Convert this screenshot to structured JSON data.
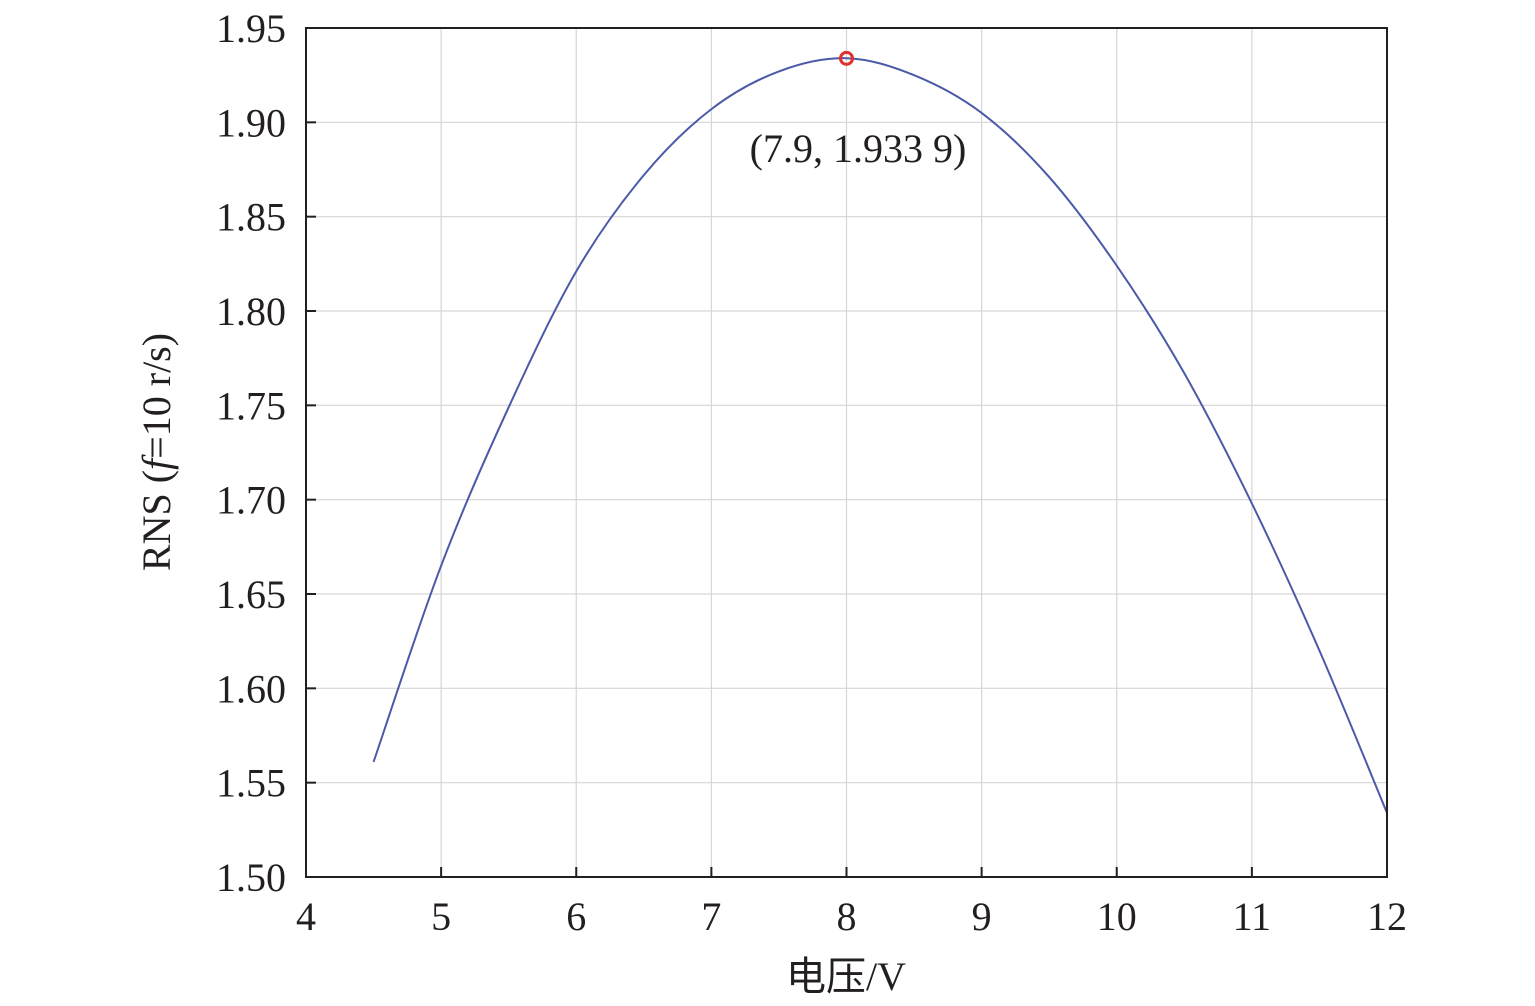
{
  "chart_data": {
    "type": "line",
    "xlabel": "电压/V",
    "ylabel_prefix": "RNS (",
    "ylabel_italic": "f",
    "ylabel_suffix": "=10 r/s)",
    "xlim": [
      4,
      12
    ],
    "ylim": [
      1.5,
      1.95
    ],
    "x_ticks": [
      4,
      5,
      6,
      7,
      8,
      9,
      10,
      11,
      12
    ],
    "y_ticks": [
      1.5,
      1.55,
      1.6,
      1.65,
      1.7,
      1.75,
      1.8,
      1.85,
      1.9,
      1.95
    ],
    "x_tick_labels": [
      "4",
      "5",
      "6",
      "7",
      "8",
      "9",
      "10",
      "11",
      "12"
    ],
    "y_tick_labels": [
      "1.50",
      "1.55",
      "1.60",
      "1.65",
      "1.70",
      "1.75",
      "1.80",
      "1.85",
      "1.90",
      "1.95"
    ],
    "grid": true,
    "series": [
      {
        "color": "#4a5aa8",
        "x": [
          4.5,
          5.0,
          5.5,
          6.0,
          6.5,
          7.0,
          7.5,
          8.0,
          8.5,
          9.0,
          9.5,
          10.0,
          10.5,
          11.0,
          11.5,
          12.0
        ],
        "y": [
          1.561,
          1.665,
          1.749,
          1.821,
          1.872,
          1.907,
          1.927,
          1.934,
          1.925,
          1.905,
          1.871,
          1.824,
          1.767,
          1.698,
          1.62,
          1.534
        ]
      }
    ],
    "annotation": {
      "x": 7.9,
      "y": 1.9339,
      "text": "(7.9, 1.933 9)",
      "marker_color": "#e0302f"
    }
  }
}
